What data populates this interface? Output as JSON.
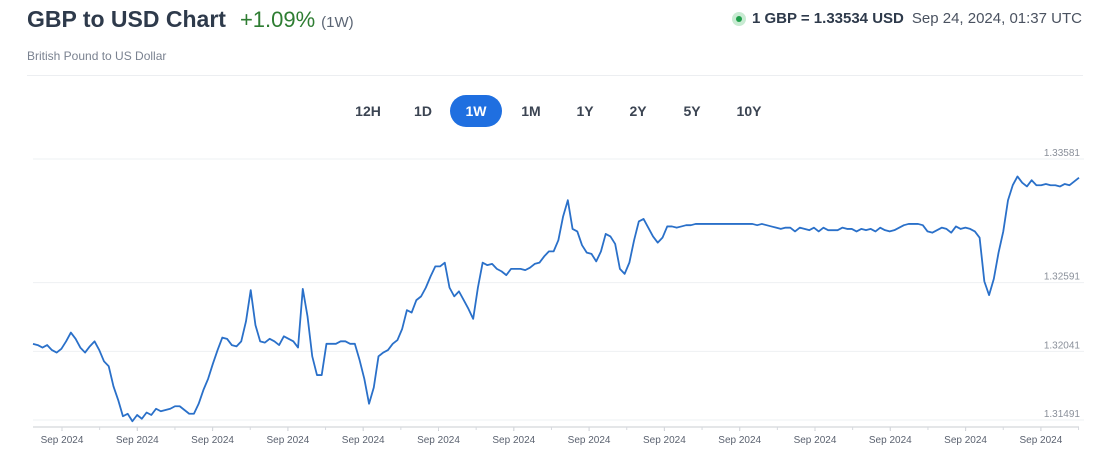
{
  "header": {
    "title": "GBP to USD Chart",
    "change": "+1.09%",
    "period": "(1W)",
    "subtitle": "British Pound to US Dollar",
    "rate": "1 GBP = 1.33534 USD",
    "timestamp": "Sep 24, 2024, 01:37 UTC",
    "live_color": "#1e9e4a"
  },
  "range_tabs": [
    {
      "label": "12H",
      "active": false
    },
    {
      "label": "1D",
      "active": false
    },
    {
      "label": "1W",
      "active": true
    },
    {
      "label": "1M",
      "active": false
    },
    {
      "label": "1Y",
      "active": false
    },
    {
      "label": "2Y",
      "active": false
    },
    {
      "label": "5Y",
      "active": false
    },
    {
      "label": "10Y",
      "active": false
    }
  ],
  "colors": {
    "line": "#2a70c9",
    "accent": "#1f6fe0",
    "positive": "#2e7d32"
  },
  "chart_data": {
    "type": "line",
    "title": "",
    "xlabel": "",
    "ylabel": "",
    "ylim": [
      1.3149,
      1.3358
    ],
    "y_ticks": [
      "1.33581",
      "1.32591",
      "1.32041",
      "1.31491"
    ],
    "y_tick_values": [
      1.3358,
      1.3259,
      1.3204,
      1.3149
    ],
    "x_tick_labels": [
      "Sep 2024",
      "Sep 2024",
      "Sep 2024",
      "Sep 2024",
      "Sep 2024",
      "Sep 2024",
      "Sep 2024",
      "Sep 2024",
      "Sep 2024",
      "Sep 2024",
      "Sep 2024",
      "Sep 2024",
      "Sep 2024",
      "Sep 2024"
    ],
    "grid": true,
    "series": [
      {
        "values": [
          1.321,
          1.3209,
          1.3207,
          1.3209,
          1.3205,
          1.3203,
          1.3206,
          1.3212,
          1.3219,
          1.3214,
          1.3207,
          1.3203,
          1.3208,
          1.3212,
          1.3205,
          1.3196,
          1.3192,
          1.3176,
          1.3165,
          1.3152,
          1.3154,
          1.3148,
          1.3153,
          1.315,
          1.3155,
          1.3153,
          1.3158,
          1.3156,
          1.3157,
          1.3158,
          1.316,
          1.316,
          1.3157,
          1.3154,
          1.3154,
          1.3162,
          1.3173,
          1.3182,
          1.3194,
          1.3205,
          1.3215,
          1.3214,
          1.3209,
          1.3208,
          1.3212,
          1.3228,
          1.3253,
          1.3225,
          1.3212,
          1.3211,
          1.3214,
          1.3212,
          1.3209,
          1.3216,
          1.3214,
          1.3212,
          1.3207,
          1.3254,
          1.3232,
          1.32,
          1.3185,
          1.3185,
          1.321,
          1.321,
          1.321,
          1.3212,
          1.3212,
          1.321,
          1.321,
          1.3197,
          1.3182,
          1.3162,
          1.3175,
          1.32,
          1.3203,
          1.3205,
          1.321,
          1.3213,
          1.3222,
          1.3237,
          1.3235,
          1.3245,
          1.3248,
          1.3255,
          1.3264,
          1.3272,
          1.3272,
          1.3275,
          1.3255,
          1.3248,
          1.3252,
          1.3245,
          1.3238,
          1.323,
          1.3255,
          1.3275,
          1.3273,
          1.3274,
          1.327,
          1.3268,
          1.3265,
          1.327,
          1.327,
          1.327,
          1.3269,
          1.3271,
          1.3274,
          1.3275,
          1.328,
          1.3284,
          1.3284,
          1.3293,
          1.3312,
          1.3325,
          1.3302,
          1.33,
          1.3289,
          1.3283,
          1.3282,
          1.3276,
          1.3284,
          1.3298,
          1.3296,
          1.329,
          1.327,
          1.3266,
          1.3275,
          1.3293,
          1.3308,
          1.331,
          1.3303,
          1.3296,
          1.3291,
          1.3295,
          1.3304,
          1.3304,
          1.3303,
          1.3304,
          1.3305,
          1.3305,
          1.3306,
          1.3306,
          1.3306,
          1.3306,
          1.3306,
          1.3306,
          1.3306,
          1.3306,
          1.3306,
          1.3306,
          1.3306,
          1.3306,
          1.3306,
          1.3305,
          1.3306,
          1.3305,
          1.3304,
          1.3303,
          1.3302,
          1.3303,
          1.3303,
          1.33,
          1.3303,
          1.3302,
          1.3301,
          1.3303,
          1.33,
          1.3303,
          1.3301,
          1.3301,
          1.3301,
          1.3303,
          1.3302,
          1.3302,
          1.33,
          1.3302,
          1.3301,
          1.3302,
          1.33,
          1.3303,
          1.3301,
          1.33,
          1.3301,
          1.3303,
          1.3305,
          1.3306,
          1.3306,
          1.3306,
          1.3305,
          1.33,
          1.3299,
          1.3301,
          1.3303,
          1.3302,
          1.3299,
          1.3304,
          1.3302,
          1.3303,
          1.3302,
          1.33,
          1.3295,
          1.326,
          1.3249,
          1.3262,
          1.3283,
          1.33,
          1.3325,
          1.3337,
          1.3344,
          1.3339,
          1.3336,
          1.3341,
          1.3337,
          1.3337,
          1.3338,
          1.3337,
          1.3337,
          1.3336,
          1.3338,
          1.3337,
          1.334,
          1.3343
        ]
      }
    ]
  }
}
